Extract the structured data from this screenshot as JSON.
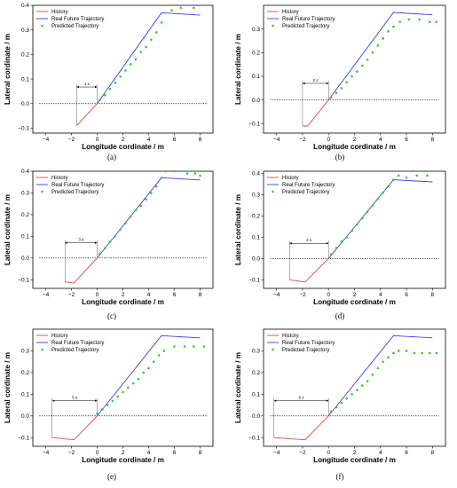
{
  "chart_data": [
    {
      "panel_label": "(a)",
      "type": "line",
      "xlabel": "Longitude cordinate / m",
      "ylabel": "Lateral cordinate / m",
      "xlim": [
        -5,
        9
      ],
      "ylim": [
        -0.12,
        0.4
      ],
      "xticks": [
        "−4",
        "−2",
        "0",
        "2",
        "4",
        "6",
        "8"
      ],
      "yticks": [
        "−0.1",
        "0.0",
        "0.1",
        "0.2",
        "0.3",
        "0.4"
      ],
      "annotation": "1 s",
      "annotation_span": [
        -1.6,
        0.0
      ],
      "legend": {
        "position": "top-left",
        "entries": [
          "History",
          "Real Future Trajectory",
          "Predicted Trajectory"
        ]
      },
      "colors": {
        "history": "#e8413a",
        "real": "#3a3ae8",
        "predicted": "#34c934"
      },
      "series": [
        {
          "name": "History",
          "style": "line",
          "x": [
            -1.6,
            0.0
          ],
          "y": [
            -0.09,
            0.0
          ]
        },
        {
          "name": "Real Future Trajectory",
          "style": "line",
          "x": [
            0.0,
            5.0,
            8.0
          ],
          "y": [
            0.0,
            0.37,
            0.36
          ]
        },
        {
          "name": "Predicted Trajectory",
          "style": "dots",
          "x": [
            0.2,
            0.6,
            1.0,
            1.4,
            1.8,
            2.2,
            2.6,
            3.0,
            3.4,
            3.8,
            4.2,
            4.6,
            5.0,
            5.8,
            6.5,
            7.5
          ],
          "y": [
            0.015,
            0.035,
            0.06,
            0.085,
            0.11,
            0.135,
            0.16,
            0.18,
            0.21,
            0.23,
            0.26,
            0.29,
            0.33,
            0.38,
            0.39,
            0.39
          ]
        }
      ]
    },
    {
      "panel_label": "(b)",
      "type": "line",
      "xlabel": "Longitude cordinate / m",
      "ylabel": "Lateral cordinate / m",
      "xlim": [
        -5,
        9
      ],
      "ylim": [
        -0.14,
        0.4
      ],
      "xticks": [
        "−4",
        "−2",
        "0",
        "2",
        "4",
        "6",
        "8"
      ],
      "yticks": [
        "−0.1",
        "0.0",
        "0.1",
        "0.2",
        "0.3"
      ],
      "annotation": "2 s",
      "annotation_span": [
        -2.0,
        0.0
      ],
      "legend": {
        "position": "top-left",
        "entries": [
          "History",
          "Real Future Trajectory",
          "Predicted Trajectory"
        ]
      },
      "colors": {
        "history": "#e8413a",
        "real": "#3a3ae8",
        "predicted": "#34c934"
      },
      "series": [
        {
          "name": "History",
          "style": "line",
          "x": [
            -2.0,
            -1.6,
            0.0
          ],
          "y": [
            -0.11,
            -0.11,
            0.0
          ]
        },
        {
          "name": "Real Future Trajectory",
          "style": "line",
          "x": [
            0.0,
            5.0,
            8.0
          ],
          "y": [
            0.0,
            0.37,
            0.36
          ]
        },
        {
          "name": "Predicted Trajectory",
          "style": "dots",
          "x": [
            0.2,
            0.6,
            1.0,
            1.4,
            1.8,
            2.2,
            2.6,
            3.0,
            3.4,
            3.8,
            4.2,
            4.6,
            5.0,
            5.5,
            6.2,
            7.0,
            7.8,
            8.3
          ],
          "y": [
            0.01,
            0.03,
            0.05,
            0.075,
            0.1,
            0.12,
            0.145,
            0.17,
            0.2,
            0.23,
            0.26,
            0.29,
            0.31,
            0.33,
            0.34,
            0.34,
            0.33,
            0.33
          ]
        }
      ]
    },
    {
      "panel_label": "(c)",
      "type": "line",
      "xlabel": "Longitude cordinate / m",
      "ylabel": "Lateral cordinate / m",
      "xlim": [
        -5,
        9
      ],
      "ylim": [
        -0.14,
        0.4
      ],
      "xticks": [
        "−4",
        "−2",
        "0",
        "2",
        "4",
        "6",
        "8"
      ],
      "yticks": [
        "−0.1",
        "0.0",
        "0.1",
        "0.2",
        "0.3",
        "0.4"
      ],
      "annotation": "3 s",
      "annotation_span": [
        -2.5,
        0.0
      ],
      "legend": {
        "position": "top-left",
        "entries": [
          "History",
          "Real Future Trajectory",
          "Predicted Trajectory"
        ]
      },
      "colors": {
        "history": "#e8413a",
        "real": "#3a3ae8",
        "predicted": "#34c934"
      },
      "series": [
        {
          "name": "History",
          "style": "line",
          "x": [
            -2.5,
            -1.8,
            0.0
          ],
          "y": [
            -0.11,
            -0.115,
            0.0
          ]
        },
        {
          "name": "Real Future Trajectory",
          "style": "line",
          "x": [
            0.0,
            5.0,
            8.0
          ],
          "y": [
            0.0,
            0.37,
            0.36
          ]
        },
        {
          "name": "Predicted Trajectory",
          "style": "dots",
          "x": [
            0.2,
            0.6,
            1.0,
            1.4,
            1.8,
            2.2,
            2.6,
            3.0,
            3.4,
            3.8,
            4.2,
            4.6,
            5.0,
            5.3,
            6.0,
            7.0,
            7.6,
            8.0
          ],
          "y": [
            0.02,
            0.045,
            0.075,
            0.1,
            0.13,
            0.16,
            0.19,
            0.22,
            0.24,
            0.27,
            0.3,
            0.33,
            0.37,
            0.4,
            0.4,
            0.39,
            0.39,
            0.38
          ]
        }
      ]
    },
    {
      "panel_label": "(d)",
      "type": "line",
      "xlabel": "Longitude cordinate / m",
      "ylabel": "Lateral cordinate / m",
      "xlim": [
        -5,
        9
      ],
      "ylim": [
        -0.14,
        0.41
      ],
      "xticks": [
        "−4",
        "−2",
        "0",
        "2",
        "4",
        "6",
        "8"
      ],
      "yticks": [
        "−0.1",
        "0.0",
        "0.1",
        "0.2",
        "0.3",
        "0.4"
      ],
      "annotation": "4 s",
      "annotation_span": [
        -3.0,
        0.0
      ],
      "legend": {
        "position": "top-left",
        "entries": [
          "History",
          "Real Future Trajectory",
          "Predicted Trajectory"
        ]
      },
      "colors": {
        "history": "#e8413a",
        "real": "#3a3ae8",
        "predicted": "#34c934"
      },
      "series": [
        {
          "name": "History",
          "style": "line",
          "x": [
            -3.0,
            -1.8,
            0.0
          ],
          "y": [
            -0.1,
            -0.11,
            0.0
          ]
        },
        {
          "name": "Real Future Trajectory",
          "style": "line",
          "x": [
            0.0,
            5.0,
            8.0
          ],
          "y": [
            0.0,
            0.37,
            0.36
          ]
        },
        {
          "name": "Predicted Trajectory",
          "style": "dots",
          "x": [
            0.2,
            0.6,
            1.0,
            1.4,
            1.8,
            2.2,
            2.6,
            3.0,
            3.4,
            3.8,
            4.2,
            4.6,
            5.0,
            5.4,
            6.0,
            6.8,
            7.6
          ],
          "y": [
            0.02,
            0.05,
            0.08,
            0.1,
            0.13,
            0.16,
            0.19,
            0.22,
            0.25,
            0.28,
            0.31,
            0.34,
            0.37,
            0.39,
            0.38,
            0.39,
            0.39
          ]
        }
      ]
    },
    {
      "panel_label": "(e)",
      "type": "line",
      "xlabel": "Longitude cordinate / m",
      "ylabel": "Lateral cordinate / m",
      "xlim": [
        -5,
        9
      ],
      "ylim": [
        -0.14,
        0.4
      ],
      "xticks": [
        "−4",
        "−2",
        "0",
        "2",
        "4",
        "6",
        "8"
      ],
      "yticks": [
        "−0.1",
        "0.0",
        "0.1",
        "0.2",
        "0.3"
      ],
      "annotation": "5 s",
      "annotation_span": [
        -3.5,
        0.0
      ],
      "legend": {
        "position": "top-left",
        "entries": [
          "History",
          "Real Future Trajectory",
          "Predicted Trajectory"
        ]
      },
      "colors": {
        "history": "#e8413a",
        "real": "#3a3ae8",
        "predicted": "#34c934"
      },
      "series": [
        {
          "name": "History",
          "style": "line",
          "x": [
            -3.5,
            -1.8,
            0.0
          ],
          "y": [
            -0.1,
            -0.11,
            0.0
          ]
        },
        {
          "name": "Real Future Trajectory",
          "style": "line",
          "x": [
            0.0,
            5.0,
            8.0
          ],
          "y": [
            0.0,
            0.37,
            0.36
          ]
        },
        {
          "name": "Predicted Trajectory",
          "style": "dots",
          "x": [
            0.0,
            0.4,
            0.8,
            1.2,
            1.6,
            2.0,
            2.4,
            2.8,
            3.2,
            3.6,
            4.0,
            4.4,
            4.8,
            5.2,
            6.0,
            6.8,
            7.5,
            8.3
          ],
          "y": [
            0.01,
            0.03,
            0.05,
            0.07,
            0.09,
            0.11,
            0.13,
            0.15,
            0.17,
            0.2,
            0.22,
            0.25,
            0.28,
            0.3,
            0.32,
            0.32,
            0.32,
            0.32
          ]
        }
      ]
    },
    {
      "panel_label": "(f)",
      "type": "line",
      "xlabel": "Longitude cordinate / m",
      "ylabel": "Lateral cordinate / m",
      "xlim": [
        -5,
        9
      ],
      "ylim": [
        -0.14,
        0.4
      ],
      "xticks": [
        "−4",
        "−2",
        "0",
        "2",
        "4",
        "6",
        "8"
      ],
      "yticks": [
        "−0.1",
        "0.0",
        "0.1",
        "0.2",
        "0.3"
      ],
      "annotation": "6 s",
      "annotation_span": [
        -4.2,
        0.0
      ],
      "legend": {
        "position": "top-left",
        "entries": [
          "History",
          "Real Future Trajectory",
          "Predicted Trajectory"
        ]
      },
      "colors": {
        "history": "#e8413a",
        "real": "#3a3ae8",
        "predicted": "#34c934"
      },
      "series": [
        {
          "name": "History",
          "style": "line",
          "x": [
            -4.2,
            -1.8,
            0.0
          ],
          "y": [
            -0.1,
            -0.11,
            0.0
          ]
        },
        {
          "name": "Real Future Trajectory",
          "style": "line",
          "x": [
            0.0,
            5.0,
            8.0
          ],
          "y": [
            0.0,
            0.37,
            0.36
          ]
        },
        {
          "name": "Predicted Trajectory",
          "style": "dots",
          "x": [
            0.2,
            0.6,
            1.0,
            1.4,
            1.8,
            2.2,
            2.6,
            3.0,
            3.4,
            3.8,
            4.2,
            4.6,
            5.0,
            5.4,
            6.0,
            6.6,
            7.2,
            7.8,
            8.3
          ],
          "y": [
            0.02,
            0.04,
            0.06,
            0.08,
            0.1,
            0.12,
            0.14,
            0.16,
            0.19,
            0.22,
            0.25,
            0.27,
            0.29,
            0.3,
            0.3,
            0.29,
            0.29,
            0.29,
            0.29
          ]
        }
      ]
    }
  ]
}
